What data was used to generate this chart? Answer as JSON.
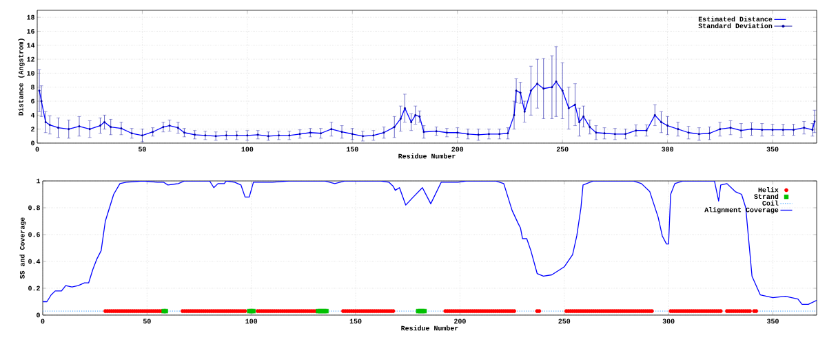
{
  "chart_data": [
    {
      "type": "line",
      "xlabel": "Residue Number",
      "ylabel": "Distance (Angstrom)",
      "xlim": [
        0,
        371
      ],
      "ylim": [
        0,
        19
      ],
      "xticks": [
        0,
        50,
        100,
        150,
        200,
        250,
        300,
        350
      ],
      "yticks": [
        0,
        2,
        4,
        6,
        8,
        10,
        12,
        14,
        16,
        18
      ],
      "grid": true,
      "legend": "top right",
      "x": [
        1,
        2,
        4,
        6,
        10,
        15,
        20,
        25,
        30,
        32,
        35,
        40,
        45,
        50,
        55,
        60,
        63,
        67,
        70,
        75,
        80,
        85,
        90,
        95,
        100,
        105,
        110,
        115,
        120,
        125,
        130,
        135,
        140,
        145,
        150,
        155,
        160,
        165,
        170,
        173,
        175,
        178,
        180,
        182,
        184,
        190,
        195,
        200,
        205,
        210,
        215,
        220,
        224,
        227,
        228,
        230,
        232,
        235,
        238,
        241,
        245,
        247,
        250,
        253,
        256,
        258,
        260,
        263,
        266,
        270,
        275,
        280,
        285,
        290,
        294,
        297,
        300,
        305,
        310,
        315,
        320,
        325,
        330,
        335,
        340,
        345,
        350,
        355,
        360,
        365,
        369,
        370
      ],
      "series": [
        {
          "name": "Estimated Distance",
          "color": "#0000ff",
          "values": [
            7.5,
            6,
            3,
            2.6,
            2.2,
            2.0,
            2.4,
            2.0,
            2.5,
            3.0,
            2.3,
            2.1,
            1.4,
            1.1,
            1.6,
            2.3,
            2.5,
            2.2,
            1.5,
            1.2,
            1.1,
            1.0,
            1.1,
            1.1,
            1.1,
            1.2,
            1.0,
            1.1,
            1.1,
            1.3,
            1.5,
            1.4,
            2.0,
            1.6,
            1.3,
            1.0,
            1.1,
            1.5,
            2.3,
            3.5,
            5.0,
            3.0,
            4.0,
            3.8,
            1.6,
            1.7,
            1.5,
            1.5,
            1.3,
            1.2,
            1.3,
            1.3,
            1.4,
            4,
            7.5,
            7.2,
            4.5,
            7.5,
            8.5,
            7.8,
            8,
            8.8,
            7.5,
            5.0,
            5.5,
            3.0,
            3.8,
            2.3,
            1.5,
            1.4,
            1.3,
            1.3,
            1.8,
            1.8,
            4.0,
            3.0,
            2.5,
            2.0,
            1.5,
            1.3,
            1.4,
            2.0,
            2.2,
            1.8,
            2.0,
            1.9,
            1.9,
            1.9,
            1.9,
            2.2,
            1.9,
            3.1
          ]
        },
        {
          "name": "Standard Deviation",
          "type": "scatter",
          "marker": "circle",
          "color": "#0000a0",
          "values": [
            7.5,
            6,
            3,
            2.6,
            2.2,
            2.0,
            2.4,
            2.0,
            2.5,
            3.0,
            2.3,
            2.1,
            1.4,
            1.1,
            1.6,
            2.3,
            2.5,
            2.2,
            1.5,
            1.2,
            1.1,
            1.0,
            1.1,
            1.1,
            1.1,
            1.2,
            1.0,
            1.1,
            1.1,
            1.3,
            1.5,
            1.4,
            2.0,
            1.6,
            1.3,
            1.0,
            1.1,
            1.5,
            2.3,
            3.5,
            5.0,
            3.0,
            4.0,
            3.8,
            1.6,
            1.7,
            1.5,
            1.5,
            1.3,
            1.2,
            1.3,
            1.3,
            1.4,
            4,
            7.5,
            7.2,
            4.5,
            7.5,
            8.5,
            7.8,
            8,
            8.8,
            7.5,
            5.0,
            5.5,
            3.0,
            3.8,
            2.3,
            1.5,
            1.4,
            1.3,
            1.3,
            1.8,
            1.8,
            4.0,
            3.0,
            2.5,
            2.0,
            1.5,
            1.3,
            1.4,
            2.0,
            2.2,
            1.8,
            2.0,
            1.9,
            1.9,
            1.9,
            1.9,
            2.2,
            1.9,
            3.1
          ],
          "errors": [
            3,
            2.2,
            1.5,
            1.3,
            1.4,
            1.3,
            1.4,
            1.2,
            1.1,
            1.0,
            1.1,
            0.9,
            0.7,
            0.9,
            0.6,
            0.7,
            0.8,
            0.8,
            0.6,
            0.6,
            0.6,
            0.6,
            0.6,
            0.6,
            0.7,
            0.6,
            0.6,
            0.6,
            0.6,
            0.6,
            0.6,
            0.7,
            1.0,
            0.9,
            0.8,
            0.7,
            0.7,
            0.8,
            1.5,
            1.8,
            2.0,
            1.2,
            1.3,
            0.8,
            0.9,
            0.6,
            0.6,
            0.7,
            0.7,
            0.8,
            0.7,
            0.7,
            0.8,
            2,
            1.7,
            1.5,
            1.5,
            3.5,
            3.5,
            4.3,
            4.5,
            5,
            4,
            3.0,
            3,
            2,
            1.5,
            1,
            1,
            0.8,
            0.8,
            0.7,
            0.8,
            0.8,
            1.5,
            1.5,
            1.3,
            1.0,
            0.9,
            0.9,
            0.9,
            1.0,
            1.0,
            1.0,
            0.9,
            0.9,
            0.8,
            0.8,
            0.8,
            0.9,
            0.9,
            1.6
          ]
        }
      ]
    },
    {
      "type": "line",
      "xlabel": "Residue Number",
      "ylabel": "SS and Coverage",
      "xlim": [
        0,
        371
      ],
      "ylim": [
        0,
        1
      ],
      "xticks": [
        0,
        50,
        100,
        150,
        200,
        250,
        300,
        350
      ],
      "yticks": [
        0,
        0.2,
        0.4,
        0.6,
        0.8,
        1
      ],
      "grid": true,
      "legend": "top right",
      "series": [
        {
          "name": "Helix",
          "type": "scatter",
          "marker": "circle",
          "color": "#ff0000",
          "x": [
            30,
            31,
            32,
            33,
            34,
            35,
            36,
            37,
            38,
            39,
            40,
            41,
            42,
            43,
            44,
            45,
            46,
            47,
            48,
            49,
            50,
            51,
            52,
            53,
            54,
            55,
            56,
            57,
            67,
            68,
            69,
            70,
            71,
            72,
            73,
            74,
            75,
            76,
            77,
            78,
            79,
            80,
            81,
            82,
            83,
            84,
            85,
            86,
            87,
            88,
            89,
            90,
            91,
            92,
            93,
            94,
            95,
            96,
            97,
            103,
            104,
            105,
            106,
            107,
            108,
            109,
            110,
            111,
            112,
            113,
            114,
            115,
            116,
            117,
            118,
            119,
            120,
            121,
            122,
            123,
            124,
            125,
            126,
            127,
            128,
            129,
            130,
            131,
            144,
            145,
            146,
            147,
            148,
            149,
            150,
            151,
            152,
            153,
            154,
            155,
            156,
            157,
            158,
            159,
            160,
            161,
            162,
            163,
            164,
            165,
            166,
            167,
            168,
            193,
            194,
            195,
            196,
            197,
            198,
            199,
            200,
            201,
            202,
            203,
            204,
            205,
            206,
            207,
            208,
            209,
            210,
            211,
            212,
            213,
            214,
            215,
            216,
            217,
            218,
            219,
            220,
            221,
            222,
            223,
            224,
            225,
            226,
            237,
            238,
            251,
            252,
            253,
            254,
            255,
            256,
            257,
            258,
            259,
            260,
            261,
            262,
            263,
            264,
            265,
            266,
            267,
            268,
            269,
            270,
            271,
            272,
            273,
            274,
            275,
            276,
            277,
            278,
            279,
            280,
            281,
            282,
            283,
            284,
            285,
            286,
            287,
            288,
            289,
            290,
            291,
            292,
            301,
            302,
            303,
            304,
            305,
            306,
            307,
            308,
            309,
            310,
            311,
            312,
            313,
            314,
            315,
            316,
            317,
            318,
            319,
            320,
            321,
            322,
            323,
            324,
            325,
            328,
            329,
            330,
            331,
            332,
            333,
            334,
            335,
            336,
            337,
            338,
            339,
            341,
            342
          ],
          "values": [
            0.03,
            0.03,
            0.03,
            0.03,
            0.03,
            0.03,
            0.03,
            0.03,
            0.03,
            0.03,
            0.03,
            0.03,
            0.03,
            0.03,
            0.03,
            0.03,
            0.03,
            0.03,
            0.03,
            0.03,
            0.03,
            0.03,
            0.03,
            0.03,
            0.03,
            0.03,
            0.03,
            0.03,
            0.03,
            0.03,
            0.03,
            0.03,
            0.03,
            0.03,
            0.03,
            0.03,
            0.03,
            0.03,
            0.03,
            0.03,
            0.03,
            0.03,
            0.03,
            0.03,
            0.03,
            0.03,
            0.03,
            0.03,
            0.03,
            0.03,
            0.03,
            0.03,
            0.03,
            0.03,
            0.03,
            0.03,
            0.03,
            0.03,
            0.03,
            0.03,
            0.03,
            0.03,
            0.03,
            0.03,
            0.03,
            0.03,
            0.03,
            0.03,
            0.03,
            0.03,
            0.03,
            0.03,
            0.03,
            0.03,
            0.03,
            0.03,
            0.03,
            0.03,
            0.03,
            0.03,
            0.03,
            0.03,
            0.03,
            0.03,
            0.03,
            0.03,
            0.03,
            0.03,
            0.03,
            0.03,
            0.03,
            0.03,
            0.03,
            0.03,
            0.03,
            0.03,
            0.03,
            0.03,
            0.03,
            0.03,
            0.03,
            0.03,
            0.03,
            0.03,
            0.03,
            0.03,
            0.03,
            0.03,
            0.03,
            0.03,
            0.03,
            0.03,
            0.03,
            0.03,
            0.03,
            0.03,
            0.03,
            0.03,
            0.03,
            0.03,
            0.03,
            0.03,
            0.03,
            0.03,
            0.03,
            0.03,
            0.03,
            0.03,
            0.03,
            0.03,
            0.03,
            0.03,
            0.03,
            0.03,
            0.03,
            0.03,
            0.03,
            0.03,
            0.03,
            0.03,
            0.03,
            0.03,
            0.03,
            0.03,
            0.03,
            0.03,
            0.03,
            0.03,
            0.03,
            0.03,
            0.03,
            0.03,
            0.03,
            0.03,
            0.03,
            0.03,
            0.03,
            0.03,
            0.03,
            0.03,
            0.03,
            0.03,
            0.03,
            0.03,
            0.03,
            0.03,
            0.03,
            0.03,
            0.03,
            0.03,
            0.03,
            0.03,
            0.03,
            0.03,
            0.03,
            0.03,
            0.03,
            0.03,
            0.03,
            0.03,
            0.03,
            0.03,
            0.03,
            0.03,
            0.03,
            0.03,
            0.03,
            0.03,
            0.03,
            0.03,
            0.03,
            0.03,
            0.03,
            0.03,
            0.03,
            0.03,
            0.03,
            0.03,
            0.03,
            0.03,
            0.03,
            0.03,
            0.03,
            0.03,
            0.03,
            0.03,
            0.03,
            0.03,
            0.03,
            0.03,
            0.03,
            0.03,
            0.03,
            0.03,
            0.03,
            0.03,
            0.03,
            0.03,
            0.03,
            0.03,
            0.03,
            0.03,
            0.03,
            0.03,
            0.03,
            0.03,
            0.03,
            0.03,
            0.03,
            0.03
          ]
        },
        {
          "name": "Strand",
          "type": "scatter",
          "marker": "square",
          "color": "#00c000",
          "x": [
            58,
            59,
            99,
            100,
            101,
            132,
            133,
            134,
            135,
            136,
            180,
            181,
            182,
            183
          ],
          "values": [
            0.03,
            0.03,
            0.03,
            0.03,
            0.03,
            0.03,
            0.03,
            0.03,
            0.03,
            0.03,
            0.03,
            0.03,
            0.03,
            0.03
          ]
        },
        {
          "name": "Coil",
          "line_style": "dotted",
          "color": "#1e90ff",
          "x": [
            0,
            371
          ],
          "values": [
            0.03,
            0.03
          ]
        },
        {
          "name": "Alignment Coverage",
          "color": "#0000ff",
          "x": [
            0,
            2,
            4,
            6,
            9,
            11,
            14,
            17,
            20,
            22,
            24,
            26,
            28,
            30,
            34,
            37,
            40,
            48,
            55,
            58,
            60,
            65,
            68,
            80,
            82,
            84,
            87,
            88,
            92,
            95,
            97,
            99,
            101,
            110,
            118,
            135,
            140,
            145,
            162,
            166,
            168,
            169,
            171,
            174,
            177,
            182,
            186,
            191,
            199,
            203,
            217,
            221,
            225,
            228,
            229,
            230,
            232,
            234,
            237,
            240,
            244,
            248,
            250,
            254,
            256,
            258,
            259,
            264,
            283,
            287,
            291,
            295,
            297,
            299,
            300,
            301,
            303,
            307,
            322,
            324,
            325,
            328,
            332,
            335,
            337,
            339,
            340,
            344,
            350,
            356,
            359,
            362,
            364,
            367,
            371
          ],
          "values": [
            0.1,
            0.1,
            0.15,
            0.18,
            0.18,
            0.22,
            0.21,
            0.22,
            0.24,
            0.24,
            0.34,
            0.42,
            0.48,
            0.7,
            0.9,
            0.98,
            0.99,
            1.0,
            0.99,
            0.99,
            0.97,
            0.98,
            1.0,
            1.0,
            0.95,
            0.98,
            0.98,
            1.0,
            0.99,
            0.97,
            0.88,
            0.88,
            0.99,
            0.99,
            1.0,
            1.0,
            0.98,
            1.0,
            1.0,
            0.99,
            0.96,
            0.93,
            0.95,
            0.82,
            0.87,
            0.95,
            0.83,
            0.99,
            0.99,
            1.0,
            1.0,
            0.98,
            0.78,
            0.68,
            0.65,
            0.57,
            0.57,
            0.48,
            0.31,
            0.29,
            0.3,
            0.34,
            0.36,
            0.45,
            0.59,
            0.8,
            0.97,
            1.0,
            1.0,
            0.98,
            0.92,
            0.73,
            0.59,
            0.53,
            0.53,
            0.9,
            0.98,
            1.0,
            1.0,
            0.85,
            0.97,
            0.98,
            0.92,
            0.9,
            0.8,
            0.46,
            0.29,
            0.15,
            0.13,
            0.14,
            0.13,
            0.12,
            0.08,
            0.08,
            0.11
          ]
        }
      ]
    }
  ]
}
